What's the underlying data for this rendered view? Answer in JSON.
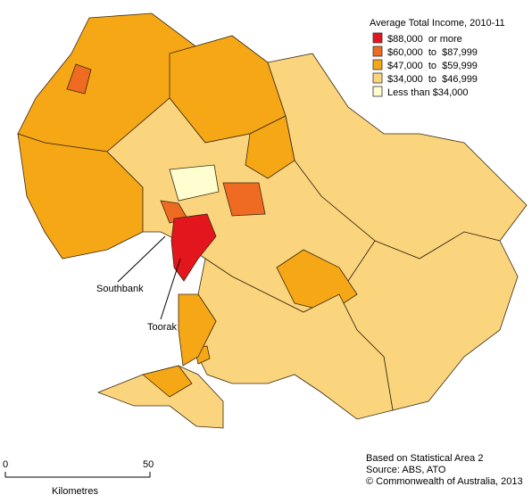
{
  "legend": {
    "title": "Average Total Income, 2010-11",
    "items": [
      {
        "label": "$88,000  or more",
        "color": "#e3161d"
      },
      {
        "label": "$60,000  to  $87,999",
        "color": "#ef6b22"
      },
      {
        "label": "$47,000  to  $59,999",
        "color": "#f6a715"
      },
      {
        "label": "$34,000  to  $46,999",
        "color": "#fbd47e"
      },
      {
        "label": "Less than $34,000",
        "color": "#fefed0"
      }
    ]
  },
  "annotations": [
    "Southbank",
    "Toorak"
  ],
  "scale": {
    "ticks": [
      "0",
      "50"
    ],
    "unit": "Kilometres"
  },
  "source": [
    "Based on Statistical Area 2",
    "Source: ABS, ATO",
    "© Commonwealth of Australia, 2013"
  ]
}
